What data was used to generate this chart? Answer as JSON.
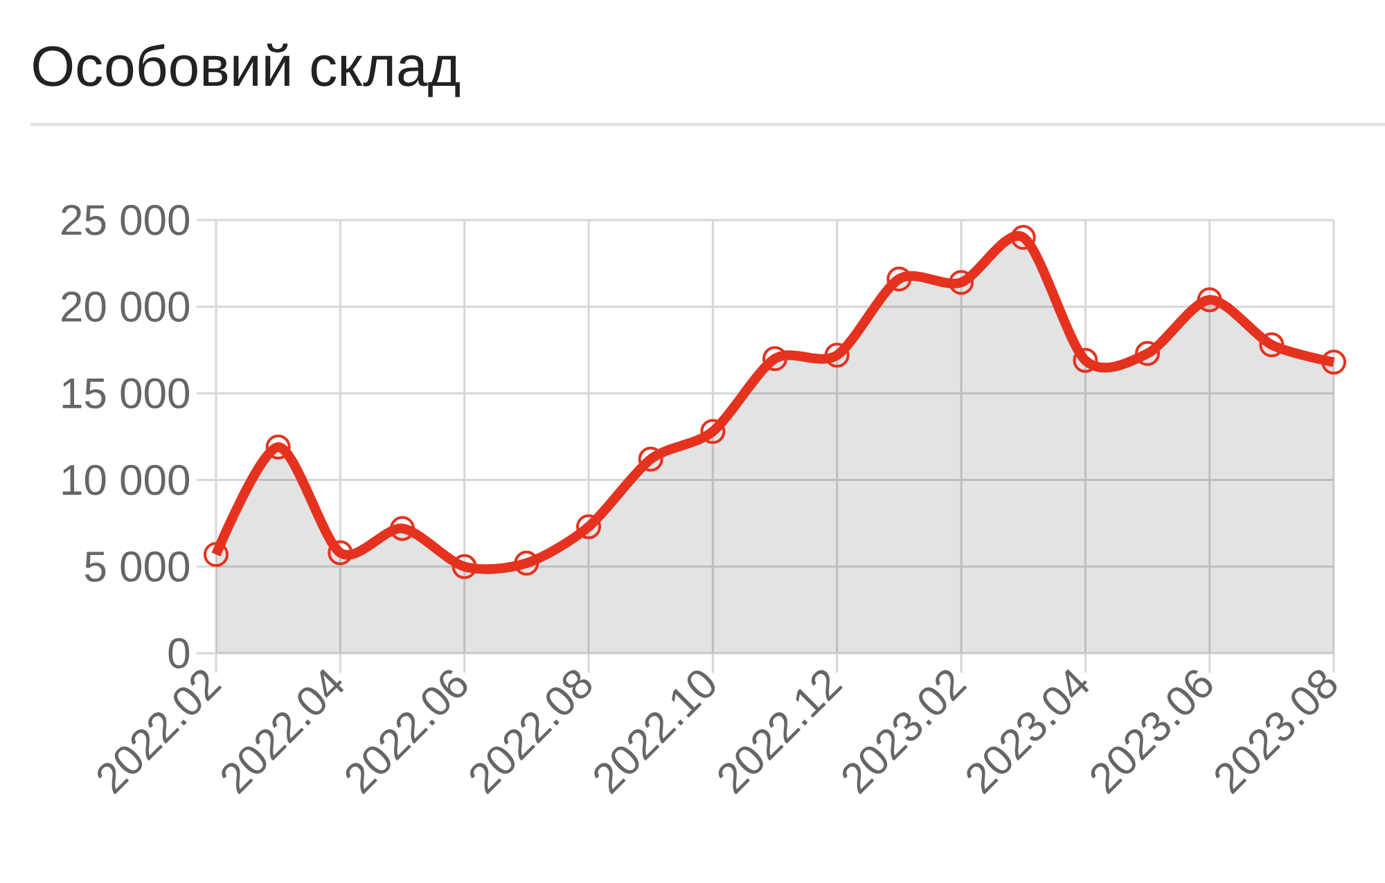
{
  "chart_data": {
    "type": "area",
    "title": "Особовий склад",
    "categories": [
      "2022.02",
      null,
      "2022.04",
      null,
      "2022.06",
      null,
      "2022.08",
      null,
      "2022.10",
      null,
      "2022.12",
      null,
      "2023.02",
      null,
      "2023.04",
      null,
      "2023.06",
      null,
      "2023.08"
    ],
    "values": [
      5700,
      11900,
      5800,
      7200,
      5000,
      5200,
      7300,
      11200,
      12800,
      17000,
      17200,
      21600,
      21400,
      24000,
      16900,
      17300,
      20400,
      17800,
      16800
    ],
    "color": "#e5321f",
    "ylim": [
      0,
      25000
    ],
    "yticks": [
      0,
      {
        "value": 5000,
        "label": "5 000"
      },
      {
        "value": 10000,
        "label": "10 000"
      },
      {
        "value": 15000,
        "label": "15 000"
      },
      {
        "value": 20000,
        "label": "20 000"
      },
      {
        "value": 25000,
        "label": "25 000"
      }
    ],
    "grid": true,
    "marker": "circle",
    "line_style": "solid"
  }
}
